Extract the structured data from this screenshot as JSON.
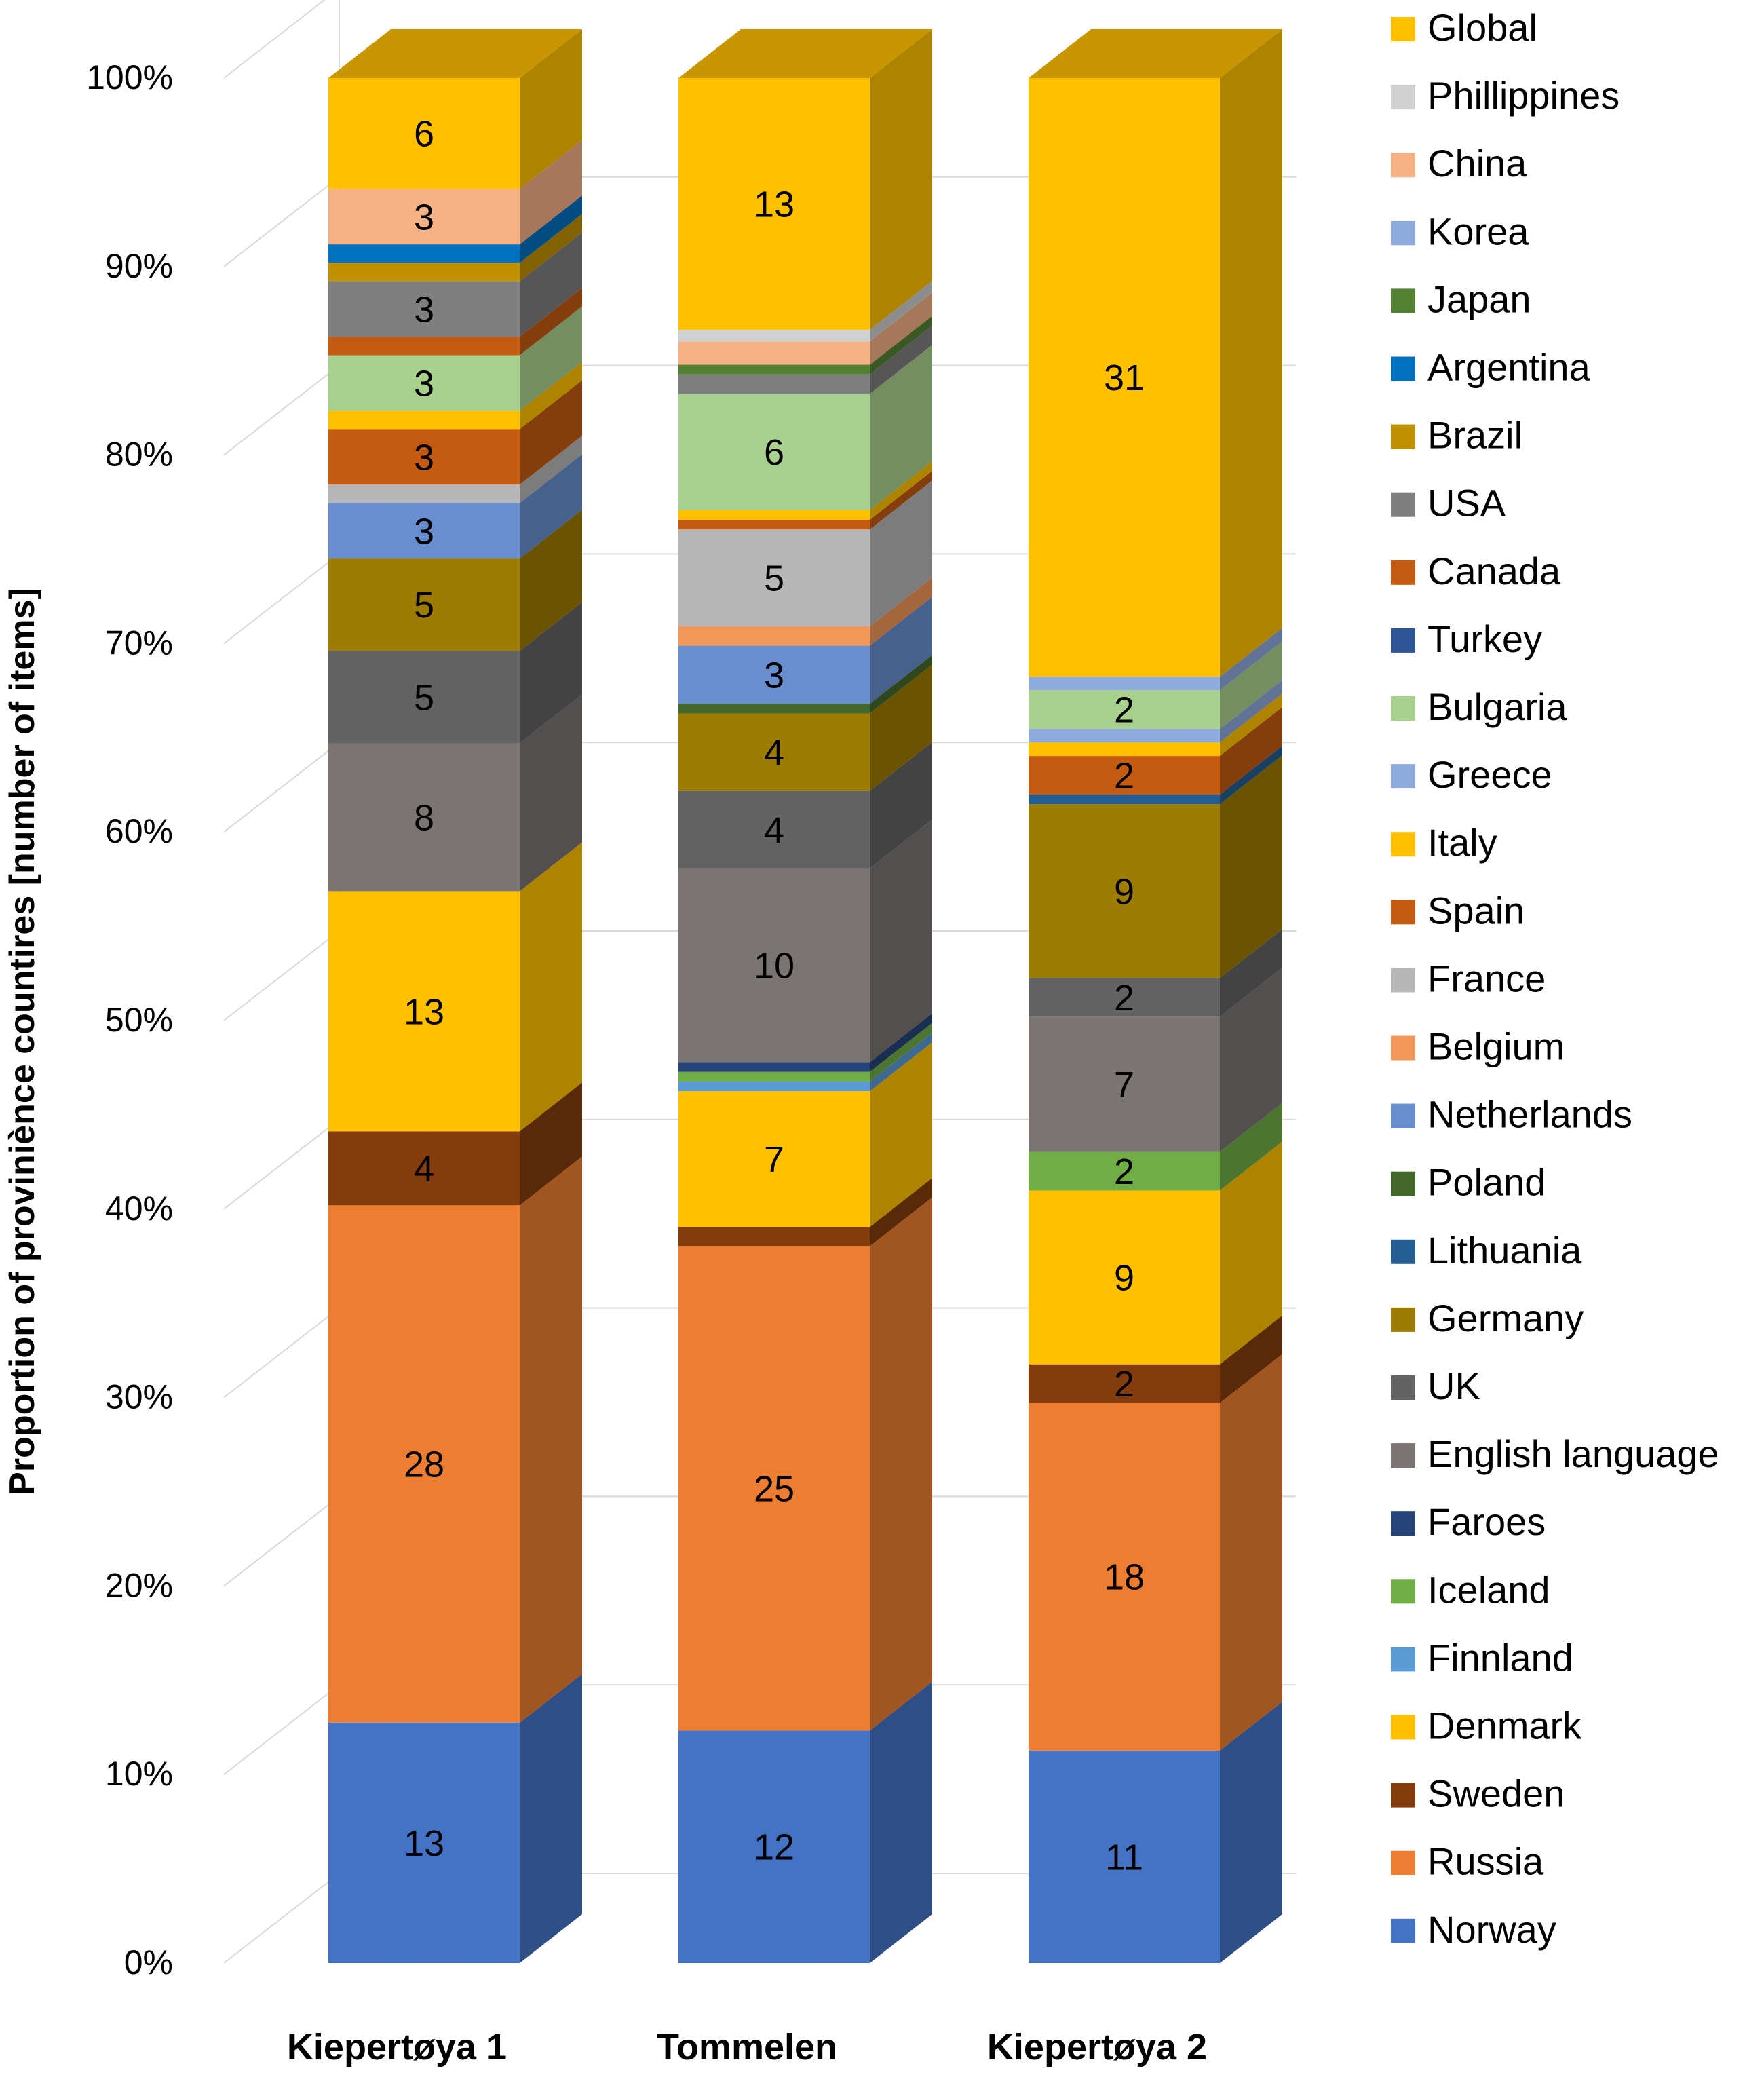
{
  "chart_data": {
    "type": "bar",
    "stacked": true,
    "normalized": true,
    "three_d": true,
    "ylabel": "Proportion of proviniènce countires [number of items]",
    "ylim": [
      0,
      1
    ],
    "yticks": [
      0,
      0.1,
      0.2,
      0.3,
      0.4,
      0.5,
      0.6,
      0.7,
      0.8,
      0.9,
      1.0
    ],
    "ytick_labels": [
      "0%",
      "10%",
      "20%",
      "30%",
      "40%",
      "50%",
      "60%",
      "70%",
      "80%",
      "90%",
      "100%"
    ],
    "grid": true,
    "legend_position": "right",
    "categories": [
      "Kiepertøya 1",
      "Tommelen",
      "Kiepertøya 2"
    ],
    "series": [
      {
        "name": "Norway",
        "color": "#4472C4",
        "values": [
          13,
          12,
          11
        ]
      },
      {
        "name": "Russia",
        "color": "#ED7D31",
        "values": [
          28,
          25,
          18
        ]
      },
      {
        "name": "Sweden",
        "color": "#843C0C",
        "values": [
          4,
          1,
          2
        ]
      },
      {
        "name": "Denmark",
        "color": "#FFC000",
        "values": [
          13,
          7,
          9
        ]
      },
      {
        "name": "Finnland",
        "color": "#5B9BD5",
        "values": [
          0,
          0.5,
          0
        ]
      },
      {
        "name": "Iceland",
        "color": "#70AD47",
        "values": [
          0,
          0.5,
          2
        ]
      },
      {
        "name": "Faroes",
        "color": "#264478",
        "values": [
          0,
          0.5,
          0
        ]
      },
      {
        "name": "English language",
        "color": "#7A7472",
        "values": [
          8,
          10,
          7
        ]
      },
      {
        "name": "UK",
        "color": "#636363",
        "values": [
          5,
          4,
          2
        ]
      },
      {
        "name": "Germany",
        "color": "#9E7B02",
        "values": [
          5,
          4,
          9
        ]
      },
      {
        "name": "Lithuania",
        "color": "#255E91",
        "values": [
          0,
          0,
          0.5
        ]
      },
      {
        "name": "Poland",
        "color": "#43682B",
        "values": [
          0,
          0.5,
          0
        ]
      },
      {
        "name": "Netherlands",
        "color": "#698ED0",
        "values": [
          3,
          3,
          0
        ]
      },
      {
        "name": "Belgium",
        "color": "#F1975A",
        "values": [
          0,
          1,
          0
        ]
      },
      {
        "name": "France",
        "color": "#B7B7B7",
        "values": [
          1,
          5,
          0
        ]
      },
      {
        "name": "Spain",
        "color": "#C55A11",
        "values": [
          3,
          0.5,
          2
        ]
      },
      {
        "name": "Italy",
        "color": "#FFC000",
        "values": [
          1,
          0.5,
          0.7
        ]
      },
      {
        "name": "Greece",
        "color": "#8FAADC",
        "values": [
          0,
          0,
          0.7
        ]
      },
      {
        "name": "Bulgaria",
        "color": "#A9D18E",
        "values": [
          3,
          6,
          2
        ]
      },
      {
        "name": "Turkey",
        "color": "#2F5597",
        "values": [
          0,
          0,
          0
        ]
      },
      {
        "name": "Canada",
        "color": "#C55A11",
        "values": [
          1,
          0,
          0
        ]
      },
      {
        "name": "USA",
        "color": "#7F7F7F",
        "values": [
          3,
          1,
          0
        ]
      },
      {
        "name": "Brazil",
        "color": "#BF9000",
        "values": [
          1,
          0,
          0
        ]
      },
      {
        "name": "Argentina",
        "color": "#0070C0",
        "values": [
          1,
          0,
          0
        ]
      },
      {
        "name": "Japan",
        "color": "#548235",
        "values": [
          0,
          0.5,
          0
        ]
      },
      {
        "name": "Korea",
        "color": "#8FAADC",
        "values": [
          0,
          0,
          0.7
        ]
      },
      {
        "name": "China",
        "color": "#F4B183",
        "values": [
          3,
          1.2,
          0
        ]
      },
      {
        "name": "Phillippines",
        "color": "#D0D0D0",
        "values": [
          0,
          0.6,
          0
        ]
      },
      {
        "name": "Global",
        "color": "#FFC000",
        "values": [
          6,
          13,
          31
        ]
      }
    ],
    "data_labels": {
      "Kiepertøya 1": {
        "Norway": "13",
        "Russia": "28",
        "Sweden": "4",
        "Denmark": "13",
        "English language": "8",
        "UK": "5",
        "Germany": "5",
        "Netherlands": "3",
        "Spain": "3",
        "Bulgaria": "3",
        "USA": "3",
        "China": "3",
        "Global": "6"
      },
      "Tommelen": {
        "Norway": "12",
        "Russia": "25",
        "Denmark": "7",
        "English language": "10",
        "UK": "4",
        "Germany": "4",
        "Netherlands": "3",
        "France": "5",
        "Bulgaria": "6",
        "Global": "13"
      },
      "Kiepertøya 2": {
        "Norway": "11",
        "Russia": "18",
        "Sweden": "2",
        "Denmark": "9",
        "Iceland": "2",
        "English language": "7",
        "UK": "2",
        "Germany": "9",
        "Spain": "2",
        "Bulgaria": "2",
        "Global": "31"
      }
    },
    "legend_order": [
      "Global",
      "Phillippines",
      "China",
      "Korea",
      "Japan",
      "Argentina",
      "Brazil",
      "USA",
      "Canada",
      "Turkey",
      "Bulgaria",
      "Greece",
      "Italy",
      "Spain",
      "France",
      "Belgium",
      "Netherlands",
      "Poland",
      "Lithuania",
      "Germany",
      "UK",
      "English language",
      "Faroes",
      "Iceland",
      "Finnland",
      "Denmark",
      "Sweden",
      "Russia",
      "Norway"
    ]
  }
}
